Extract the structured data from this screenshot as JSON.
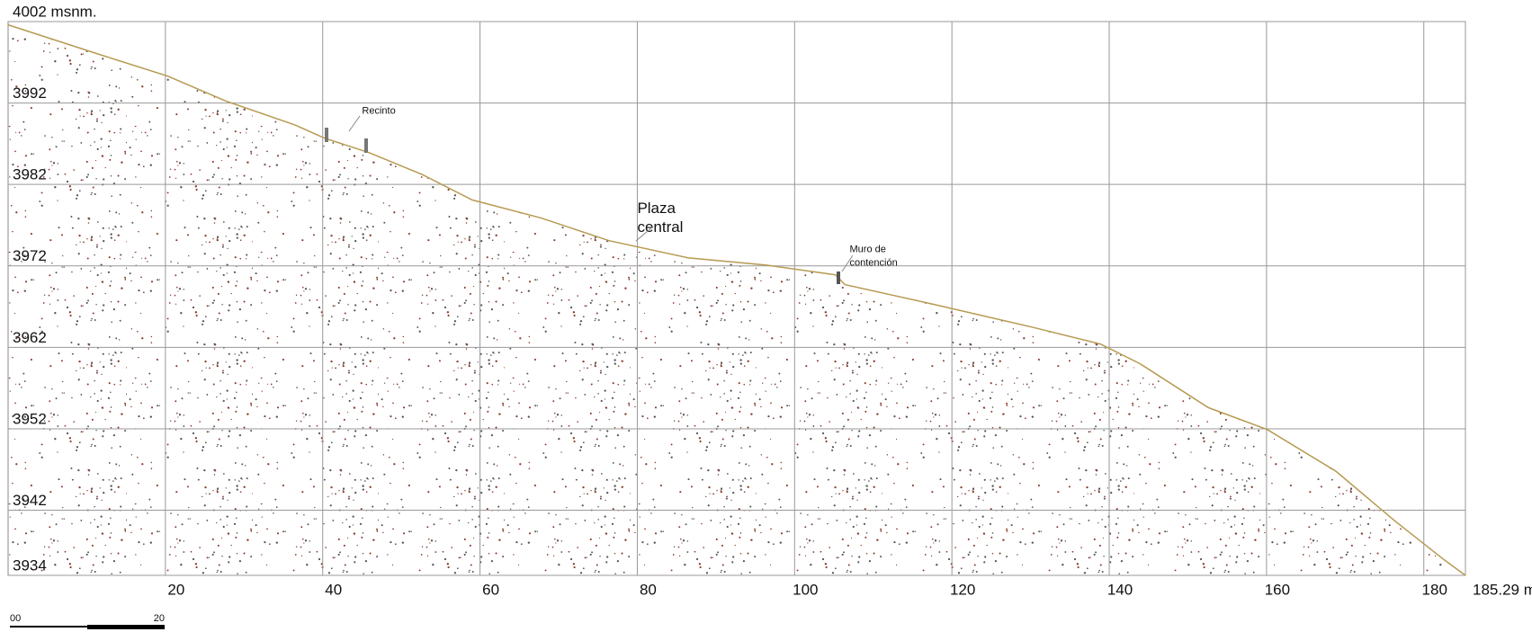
{
  "chart_data": {
    "type": "area",
    "color": "#b79a52",
    "x": [
      0,
      11.5,
      20.3,
      27.8,
      36.5,
      40.2,
      45.9,
      52.7,
      59,
      67.7,
      76.4,
      86.4,
      96.4,
      105.2,
      106.4,
      117.6,
      130.1,
      138.9,
      143.9,
      152.6,
      160.1,
      168.8,
      176.3,
      182.6,
      185.29
    ],
    "values": [
      4001.6,
      3998,
      3995.3,
      3992.2,
      3989.3,
      3987.7,
      3985.9,
      3983.2,
      3980.1,
      3977.9,
      3975.1,
      3973,
      3972.1,
      3970.9,
      3969.7,
      3967.3,
      3964.5,
      3962.4,
      3960,
      3954.6,
      3951.9,
      3946.8,
      3940.7,
      3935.9,
      3934
    ],
    "xlim": [
      0,
      185.29
    ],
    "xticks": [
      20,
      40,
      60,
      80,
      100,
      120,
      140,
      160,
      180,
      {
        "value": 185.29,
        "label": "185.29 m"
      }
    ],
    "ylim": [
      3934,
      4002
    ],
    "yticks": [
      3934,
      3942,
      3952,
      3962,
      3972,
      3982,
      3992,
      {
        "value": 4002,
        "label": "4002 msnm."
      }
    ],
    "grid": true,
    "annotations": [
      {
        "text": "Recinto",
        "x": 45,
        "y": 3991
      },
      {
        "text": [
          "Plaza",
          "central"
        ],
        "x": 80,
        "y": 3979
      },
      {
        "text": [
          "Muro de",
          "contención"
        ],
        "x": 107,
        "y": 3974
      }
    ],
    "scale_bar": [
      "00",
      "20"
    ]
  }
}
